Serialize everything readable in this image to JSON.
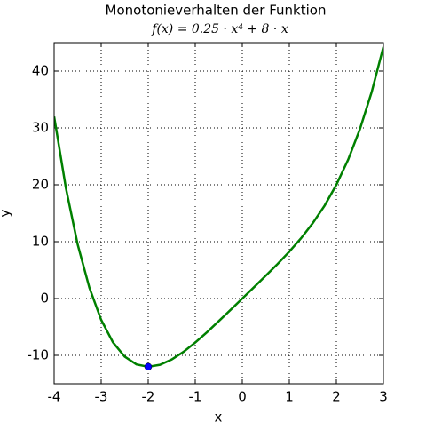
{
  "chart_data": {
    "type": "line",
    "title": "Monotonieverhalten der Funktion",
    "subtitle": "f(x) = 0.25 · x⁴ + 8 · x",
    "x_label": "x",
    "y_label": "y",
    "xlim": [
      -4,
      3
    ],
    "ylim": [
      -15,
      45
    ],
    "xticks": [
      -4,
      -3,
      -2,
      -1,
      0,
      1,
      2,
      3
    ],
    "yticks": [
      -10,
      0,
      10,
      20,
      30,
      40
    ],
    "grid": true,
    "series": [
      {
        "color": "#008000",
        "marker": "none",
        "x": [
          -4,
          -3.75,
          -3.5,
          -3.25,
          -3,
          -2.75,
          -2.5,
          -2.25,
          -2,
          -1.75,
          -1.5,
          -1.25,
          -1,
          -0.75,
          -0.5,
          -0.25,
          0,
          0.25,
          0.5,
          0.75,
          1,
          1.25,
          1.5,
          1.75,
          2,
          2.25,
          2.5,
          2.75,
          3
        ],
        "values": [
          32,
          19.44,
          9.52,
          1.89,
          -3.75,
          -7.7,
          -10.23,
          -11.59,
          -12,
          -11.66,
          -10.73,
          -9.39,
          -7.75,
          -5.92,
          -3.98,
          -2,
          0,
          2,
          4.02,
          6.08,
          8.25,
          10.61,
          13.27,
          16.34,
          20,
          24.41,
          29.77,
          36.3,
          44.25
        ]
      },
      {
        "color": "#0000ff",
        "marker": "circle",
        "x": [
          -2
        ],
        "values": [
          -12
        ]
      }
    ]
  }
}
